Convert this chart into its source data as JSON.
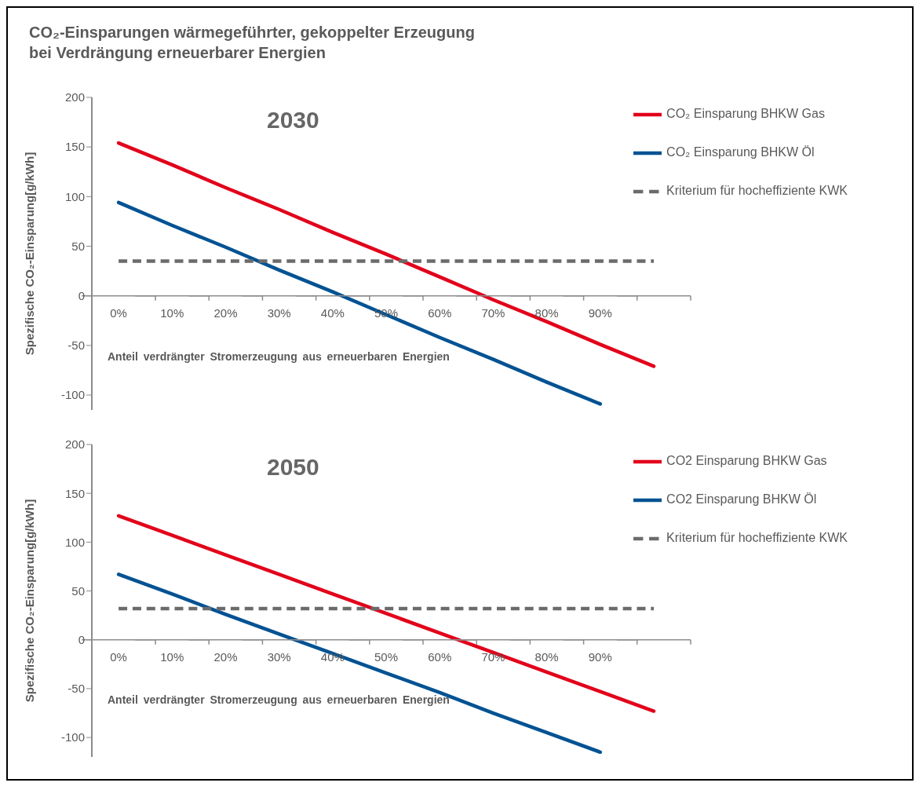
{
  "chart_data": [
    {
      "type": "line",
      "title": "CO₂-Einsparungen wärmegeführter, gekoppelter Erzeugung bei Verdrängung erneuerbarer Energien",
      "subtitle": "2030",
      "xlabel": "Anteil verdrängter Stromerzeugung aus erneuerbaren Energien",
      "ylabel": "Spezifische CO₂-Einsparung[g/kWh]",
      "categories": [
        "0%",
        "10%",
        "20%",
        "30%",
        "40%",
        "50%",
        "60%",
        "70%",
        "80%",
        "90%",
        null
      ],
      "ylim": [
        -115,
        200
      ],
      "yticks": [
        -100,
        -50,
        0,
        50,
        100,
        150,
        200
      ],
      "legend": "top right",
      "marker": "none",
      "series": [
        {
          "name": "CO₂ Einsparung BHKW Gas",
          "color": "#e2001a",
          "line_style": "solid",
          "values": [
            154,
            132,
            109,
            87,
            64,
            42,
            19,
            -4,
            -26,
            -49,
            -71
          ]
        },
        {
          "name": "CO₂ Einsparung BHKW Öl",
          "color": "#005293",
          "line_style": "solid",
          "values": [
            94,
            71,
            49,
            26,
            4,
            -19,
            -42,
            -64,
            -87,
            -109,
            null
          ]
        },
        {
          "name": "Kriterium für hocheffiziente KWK",
          "color": "#6b6b6b",
          "line_style": "dashed",
          "values": [
            35,
            35,
            35,
            35,
            35,
            35,
            35,
            35,
            35,
            35,
            35
          ]
        }
      ]
    },
    {
      "type": "line",
      "subtitle": "2050",
      "xlabel": "Anteil verdrängter Stromerzeugung aus erneuerbaren Energien",
      "ylabel": "Spezifische CO₂-Einsparung[g/kWh]",
      "categories": [
        "0%",
        "10%",
        "20%",
        "30%",
        "40%",
        "50%",
        "60%",
        "70%",
        "80%",
        "90%",
        null
      ],
      "ylim": [
        -120,
        200
      ],
      "yticks": [
        -100,
        -50,
        0,
        50,
        100,
        150,
        200
      ],
      "legend": "top right",
      "marker": "none",
      "series": [
        {
          "name": "CO2 Einsparung BHKW Gas",
          "color": "#e2001a",
          "line_style": "solid",
          "values": [
            127,
            107,
            87,
            67,
            47,
            27,
            7,
            -13,
            -33,
            -53,
            -73
          ]
        },
        {
          "name": "CO2 Einsparung BHKW Öl",
          "color": "#005293",
          "line_style": "solid",
          "values": [
            67,
            47,
            26,
            6,
            -14,
            -34,
            -54,
            -75,
            -95,
            -115,
            null
          ]
        },
        {
          "name": "Kriterium für hocheffiziente KWK",
          "color": "#6b6b6b",
          "line_style": "dashed",
          "values": [
            32,
            32,
            32,
            32,
            32,
            32,
            32,
            32,
            32,
            32,
            32
          ]
        }
      ]
    }
  ]
}
